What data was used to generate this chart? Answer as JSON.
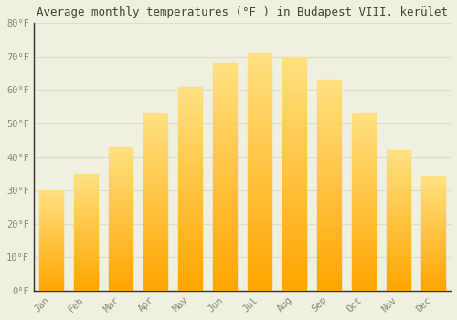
{
  "title": "Average monthly temperatures (°F ) in Budapest VIII. kerület",
  "months": [
    "Jan",
    "Feb",
    "Mar",
    "Apr",
    "May",
    "Jun",
    "Jul",
    "Aug",
    "Sep",
    "Oct",
    "Nov",
    "Dec"
  ],
  "values": [
    30,
    35,
    43,
    53,
    61,
    68,
    71,
    70,
    63,
    53,
    42,
    34
  ],
  "bar_color_bottom": "#FFA500",
  "bar_color_top": "#FFE080",
  "ylim": [
    0,
    80
  ],
  "yticks": [
    0,
    10,
    20,
    30,
    40,
    50,
    60,
    70,
    80
  ],
  "ytick_labels": [
    "0°F",
    "10°F",
    "20°F",
    "30°F",
    "40°F",
    "50°F",
    "60°F",
    "70°F",
    "80°F"
  ],
  "background_color": "#f0f0e0",
  "grid_color": "#ddddcc",
  "title_fontsize": 9,
  "tick_fontsize": 7.5,
  "font_family": "monospace",
  "tick_color": "#888877",
  "spine_color": "#333333"
}
